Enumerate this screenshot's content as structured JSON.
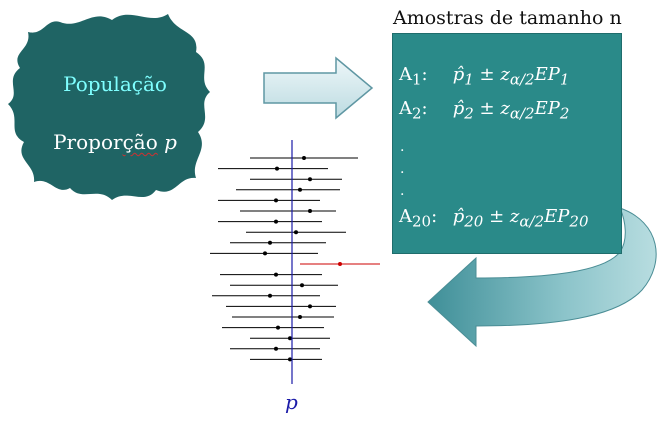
{
  "population": {
    "title": "População",
    "subtitle_prefix": "Propor",
    "subtitle_underlined": "ção",
    "subtitle_var": "p"
  },
  "samples": {
    "title": "Amostras de tamanho n",
    "rows": [
      {
        "label": "A",
        "sub": "1",
        "suffix": ":",
        "hat": "p̂",
        "hat_sub": "1",
        "pm": "±",
        "z": "z",
        "z_sub": "α/2",
        "ep": "EP",
        "ep_sub": "1"
      },
      {
        "label": "A",
        "sub": "2",
        "suffix": ":",
        "hat": "p̂",
        "hat_sub": "2",
        "pm": "±",
        "z": "z",
        "z_sub": "α/2",
        "ep": "EP",
        "ep_sub": "2"
      },
      {
        "label": "A",
        "sub": "20",
        "suffix": ":",
        "hat": "p̂",
        "hat_sub": "20",
        "pm": "±",
        "z": "z",
        "z_sub": "α/2",
        "ep": "EP",
        "ep_sub": "20"
      }
    ],
    "ellipsis": [
      ".",
      ".",
      "."
    ]
  },
  "intervals": {
    "true_param_label": "p",
    "line_color": "#000000",
    "highlight_color": "#cc0000",
    "axis_color": "#1a1aa8",
    "count": 20,
    "missing_true_index": 9
  },
  "colors": {
    "blob": "#1f6464",
    "box": "#2a8a89",
    "arrow": "#cfe6ea",
    "arrow_stroke": "#5f97a3",
    "curve_arrow": "#6fb0b7"
  }
}
